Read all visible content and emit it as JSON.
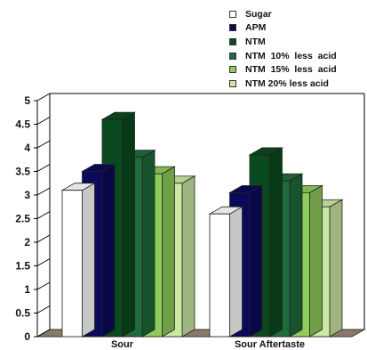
{
  "chart_data": {
    "type": "bar",
    "categories": [
      "Sour",
      "Sour Aftertaste"
    ],
    "series": [
      {
        "name": "Sugar",
        "color": "#ffffff",
        "values": [
          3.1,
          2.6
        ]
      },
      {
        "name": "APM",
        "color": "#0a0a5a",
        "values": [
          3.5,
          3.05
        ]
      },
      {
        "name": "NTM",
        "color": "#0a4a1e",
        "values": [
          4.6,
          3.85
        ]
      },
      {
        "name": "NTM  10%  less  acid",
        "color": "#1f6b3a",
        "values": [
          3.8,
          3.3
        ]
      },
      {
        "name": "NTM  15%  less  acid",
        "color": "#8fcc5c",
        "values": [
          3.45,
          3.05
        ]
      },
      {
        "name": "NTM 20% less acid",
        "color": "#cce8a4",
        "values": [
          3.25,
          2.75
        ]
      }
    ],
    "yticks": [
      "0",
      "0.5",
      "1",
      "1.5",
      "2",
      "2.5",
      "3",
      "3.5",
      "4",
      "4.5",
      "5"
    ],
    "ylim": [
      0,
      5
    ],
    "grid": false,
    "legend_position": "top-right",
    "floor_color": "#8a7a6a"
  }
}
